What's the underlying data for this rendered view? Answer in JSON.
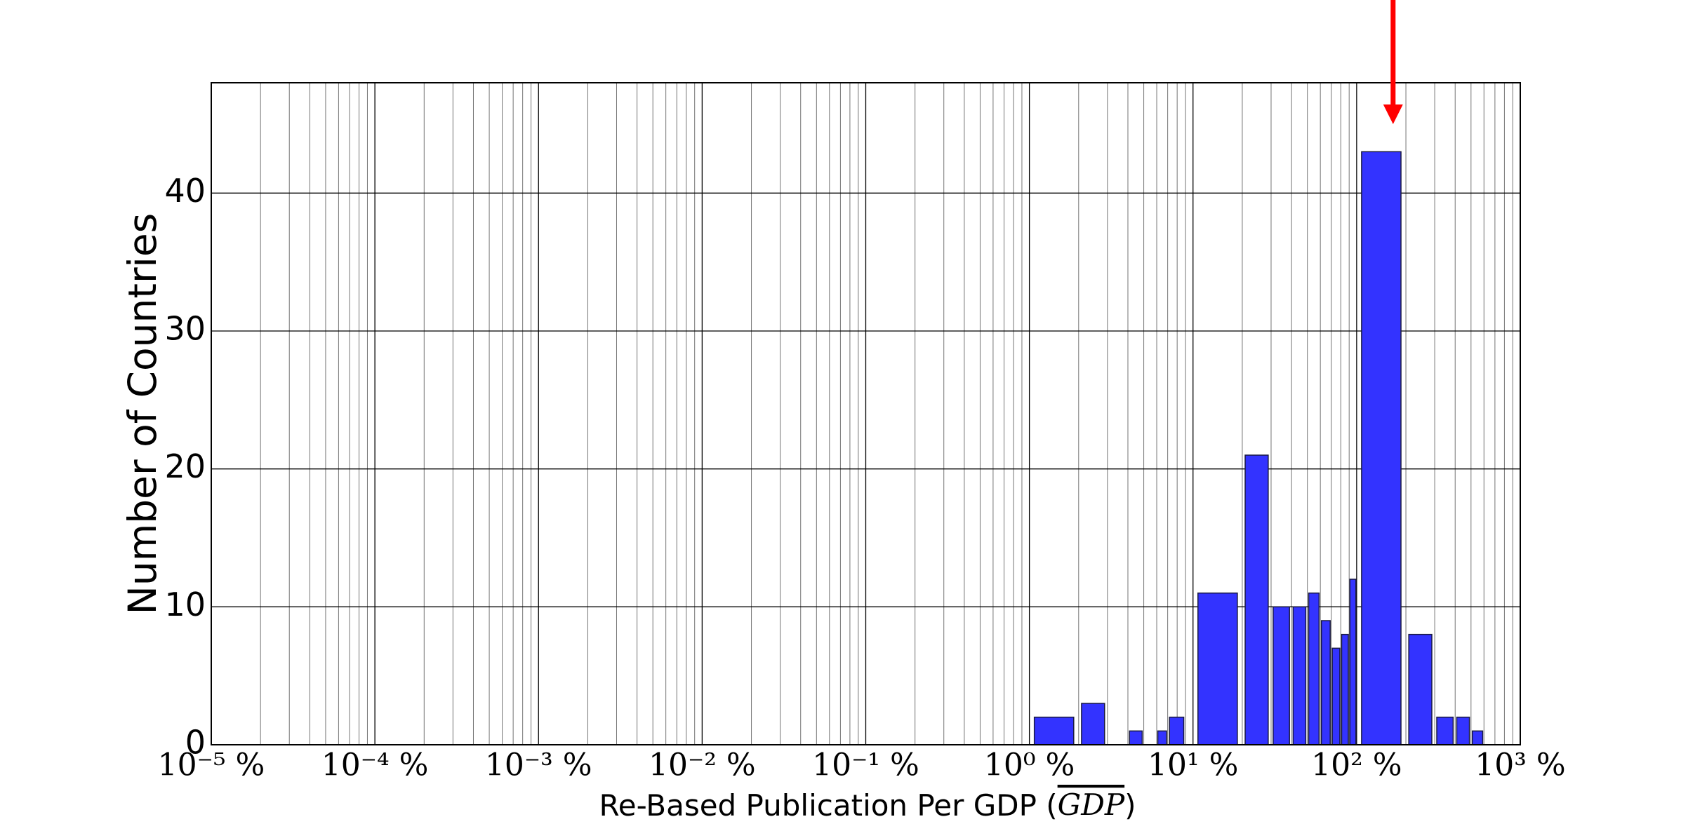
{
  "chart_data": {
    "type": "histogram",
    "xlabel_parts": [
      "Re-Based Publication Per GDP  (",
      "GDP",
      ")"
    ],
    "ylabel": "Number of Countries",
    "bins": [
      1,
      2,
      3,
      4,
      5,
      6,
      7,
      9,
      10,
      20,
      30,
      40,
      50,
      60,
      70,
      80,
      90,
      100,
      200,
      300,
      400,
      500,
      600,
      1000
    ],
    "counts": [
      2,
      3,
      0,
      1,
      0,
      1,
      2,
      0,
      11,
      21,
      10,
      10,
      11,
      9,
      7,
      8,
      12,
      43,
      8,
      2,
      2,
      1,
      0
    ],
    "color": "#3333ff",
    "edgecolor": "#1a1a40",
    "xscale": "log",
    "xlim": [
      1e-05,
      1000
    ],
    "xticks": [
      {
        "value": 1e-05,
        "label": "10⁻⁵ %"
      },
      {
        "value": 0.0001,
        "label": "10⁻⁴ %"
      },
      {
        "value": 0.001,
        "label": "10⁻³ %"
      },
      {
        "value": 0.01,
        "label": "10⁻² %"
      },
      {
        "value": 0.1,
        "label": "10⁻¹ %"
      },
      {
        "value": 1,
        "label": "10⁰ %"
      },
      {
        "value": 10,
        "label": "10¹ %"
      },
      {
        "value": 100,
        "label": "10² %"
      },
      {
        "value": 1000,
        "label": "10³ %"
      }
    ],
    "ylim": [
      0,
      48
    ],
    "yticks": [
      0,
      10,
      20,
      30,
      40
    ],
    "grid": true,
    "minor_grid": true,
    "arrow": {
      "x": 167,
      "y": 45,
      "color": "#ff0000"
    }
  }
}
